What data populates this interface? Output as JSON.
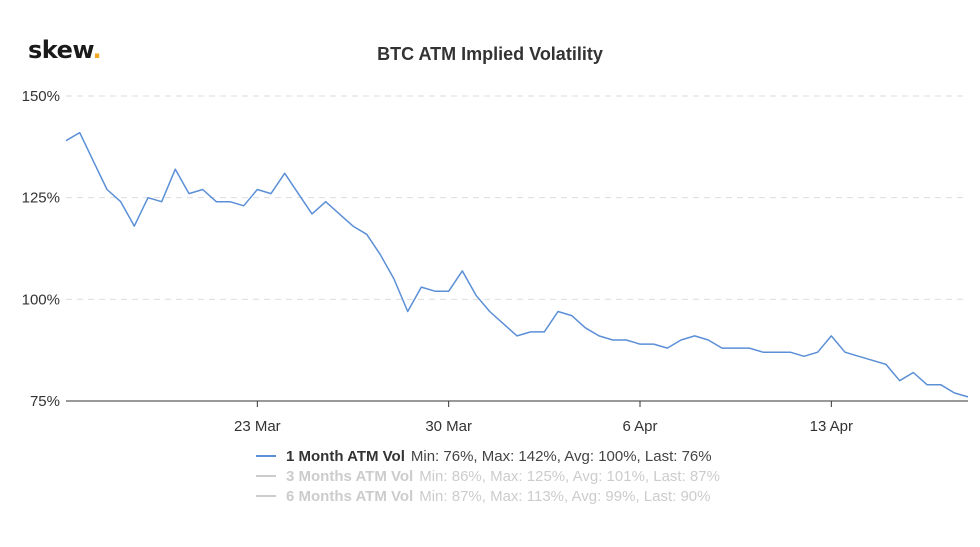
{
  "logo": {
    "text": "skew",
    "dot": "."
  },
  "chart_data": {
    "type": "line",
    "title": "BTC ATM Implied Volatility",
    "xlabel": "",
    "ylabel": "",
    "y_ticks": [
      "150%",
      "125%",
      "100%",
      "75%"
    ],
    "y_tick_values": [
      150,
      125,
      100,
      75
    ],
    "ylim": [
      75,
      150
    ],
    "x_ticks": [
      "23 Mar",
      "30 Mar",
      "6 Apr",
      "13 Apr"
    ],
    "x_tick_values": [
      "2020-03-23",
      "2020-03-30",
      "2020-04-06",
      "2020-04-13"
    ],
    "xlim": [
      "2020-03-16",
      "2020-04-18"
    ],
    "grid": "horizontal dashed",
    "legend_position": "bottom",
    "series": [
      {
        "name": "1 Month ATM Vol",
        "stats": "Min: 76%, Max: 142%, Avg: 100%, Last: 76%",
        "visible": true,
        "color": "#5b8fd6",
        "x": [
          "2020-03-16",
          "2020-03-16T12",
          "2020-03-17",
          "2020-03-17T12",
          "2020-03-18",
          "2020-03-18T12",
          "2020-03-19",
          "2020-03-19T12",
          "2020-03-20",
          "2020-03-20T12",
          "2020-03-21",
          "2020-03-21T12",
          "2020-03-22",
          "2020-03-22T12",
          "2020-03-23",
          "2020-03-23T12",
          "2020-03-24",
          "2020-03-24T12",
          "2020-03-25",
          "2020-03-25T12",
          "2020-03-26",
          "2020-03-26T12",
          "2020-03-27",
          "2020-03-27T12",
          "2020-03-28",
          "2020-03-28T12",
          "2020-03-29",
          "2020-03-29T12",
          "2020-03-30",
          "2020-03-30T12",
          "2020-03-31",
          "2020-03-31T12",
          "2020-04-01",
          "2020-04-01T12",
          "2020-04-02",
          "2020-04-02T12",
          "2020-04-03",
          "2020-04-03T12",
          "2020-04-04",
          "2020-04-04T12",
          "2020-04-05",
          "2020-04-05T12",
          "2020-04-06",
          "2020-04-06T12",
          "2020-04-07",
          "2020-04-07T12",
          "2020-04-08",
          "2020-04-08T12",
          "2020-04-09",
          "2020-04-09T12",
          "2020-04-10",
          "2020-04-10T12",
          "2020-04-11",
          "2020-04-11T12",
          "2020-04-12",
          "2020-04-12T12",
          "2020-04-13",
          "2020-04-13T12",
          "2020-04-14",
          "2020-04-14T12",
          "2020-04-15",
          "2020-04-15T12",
          "2020-04-16",
          "2020-04-16T12",
          "2020-04-17",
          "2020-04-17T12",
          "2020-04-18"
        ],
        "y": [
          139,
          141,
          134,
          127,
          124,
          118,
          125,
          124,
          132,
          126,
          127,
          124,
          124,
          123,
          127,
          126,
          131,
          126,
          121,
          124,
          121,
          118,
          116,
          111,
          105,
          97,
          103,
          102,
          102,
          107,
          101,
          97,
          94,
          91,
          92,
          92,
          97,
          96,
          93,
          91,
          90,
          90,
          89,
          89,
          88,
          90,
          91,
          90,
          88,
          88,
          88,
          87,
          87,
          87,
          86,
          87,
          91,
          87,
          86,
          85,
          84,
          80,
          82,
          79,
          79,
          77,
          76
        ]
      },
      {
        "name": "3 Months ATM Vol",
        "stats": "Min: 86%, Max: 125%, Avg: 101%, Last: 87%",
        "visible": false,
        "color": "#cccccc"
      },
      {
        "name": "6 Months ATM Vol",
        "stats": "Min: 87%, Max: 113%, Avg: 99%, Last: 90%",
        "visible": false,
        "color": "#cccccc"
      }
    ]
  }
}
